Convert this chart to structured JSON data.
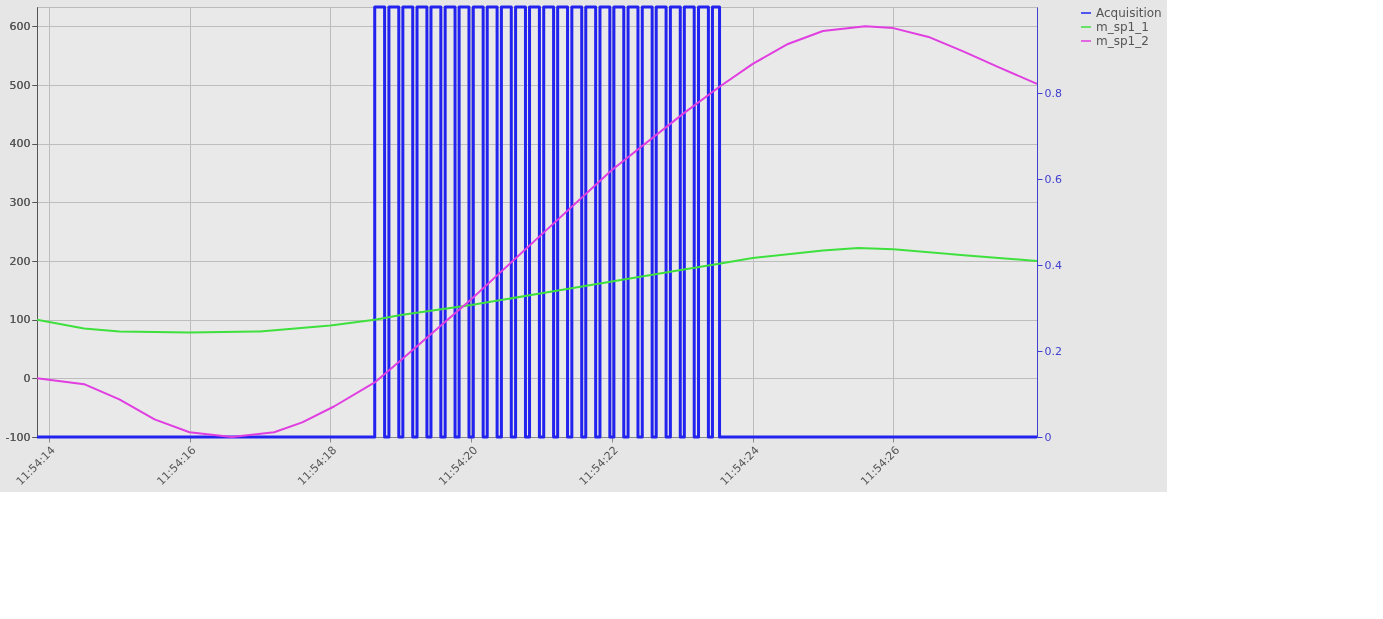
{
  "chart_data": {
    "type": "line",
    "xlim": [
      11.903842,
      11.907789
    ],
    "xticks": [
      {
        "value": 11.903889,
        "label": "11:54:14"
      },
      {
        "value": 11.904444,
        "label": "11:54:16"
      },
      {
        "value": 11.905,
        "label": "11:54:18"
      },
      {
        "value": 11.905556,
        "label": "11:54:20"
      },
      {
        "value": 11.906111,
        "label": "11:54:22"
      },
      {
        "value": 11.906667,
        "label": "11:54:24"
      },
      {
        "value": 11.907222,
        "label": "11:54:26"
      }
    ],
    "ylim": [
      -100,
      633
    ],
    "yticks": [
      -100,
      0,
      100,
      200,
      300,
      400,
      500,
      600
    ],
    "y2lim": [
      0,
      1
    ],
    "y2ticks": [
      0,
      0.2,
      0.4,
      0.6,
      0.8
    ],
    "grid": true,
    "legend": "top right",
    "series": [
      {
        "name": "Acquisition",
        "type": "step",
        "axis": "y2",
        "color": "#2323f0",
        "x": [
          11.903842,
          11.905175,
          11.905214,
          11.905231,
          11.90527,
          11.905286,
          11.905325,
          11.905342,
          11.905381,
          11.905397,
          11.905436,
          11.905453,
          11.905492,
          11.905508,
          11.905547,
          11.905564,
          11.905603,
          11.905619,
          11.905658,
          11.905675,
          11.905714,
          11.905731,
          11.90577,
          11.905786,
          11.905825,
          11.905842,
          11.905881,
          11.905897,
          11.905936,
          11.905953,
          11.905992,
          11.906008,
          11.906047,
          11.906064,
          11.906103,
          11.906119,
          11.906158,
          11.906175,
          11.906214,
          11.906231,
          11.90627,
          11.906286,
          11.906325,
          11.906342,
          11.906381,
          11.906397,
          11.906436,
          11.906453,
          11.906492,
          11.906508,
          11.906536,
          11.907789
        ],
        "values": [
          0,
          1,
          0,
          1,
          0,
          1,
          0,
          1,
          0,
          1,
          0,
          1,
          0,
          1,
          0,
          1,
          0,
          1,
          0,
          1,
          0,
          1,
          0,
          1,
          0,
          1,
          0,
          1,
          0,
          1,
          0,
          1,
          0,
          1,
          0,
          1,
          0,
          1,
          0,
          1,
          0,
          1,
          0,
          1,
          0,
          1,
          0,
          1,
          0,
          1,
          0,
          0
        ]
      },
      {
        "name": "m_sp1_1",
        "color": "#3ee03e",
        "x": [
          11.903842,
          11.904028,
          11.904167,
          11.904444,
          11.904722,
          11.904861,
          11.905,
          11.905175,
          11.905278,
          11.905556,
          11.905833,
          11.906111,
          11.906389,
          11.906528,
          11.906667,
          11.906944,
          11.907083,
          11.907222,
          11.9075,
          11.907789
        ],
        "values": [
          100,
          85,
          80,
          78,
          80,
          85,
          90,
          100,
          108,
          125,
          145,
          165,
          185,
          195,
          205,
          218,
          222,
          220,
          210,
          200
        ]
      },
      {
        "name": "m_sp1_2",
        "color": "#e03ee0",
        "x": [
          11.903842,
          11.904028,
          11.904167,
          11.904306,
          11.904444,
          11.904611,
          11.904778,
          11.904889,
          11.905014,
          11.905175,
          11.905278,
          11.905417,
          11.905556,
          11.905833,
          11.906111,
          11.906389,
          11.906536,
          11.906667,
          11.906806,
          11.906944,
          11.907111,
          11.907222,
          11.907361,
          11.9075,
          11.907639,
          11.907789
        ],
        "values": [
          0,
          -10,
          -36,
          -70,
          -92,
          -100,
          -92,
          -75,
          -48,
          -7,
          31,
          83,
          135,
          245,
          355,
          450,
          497,
          536,
          570,
          592,
          600,
          597,
          582,
          557,
          530,
          502
        ]
      }
    ]
  }
}
